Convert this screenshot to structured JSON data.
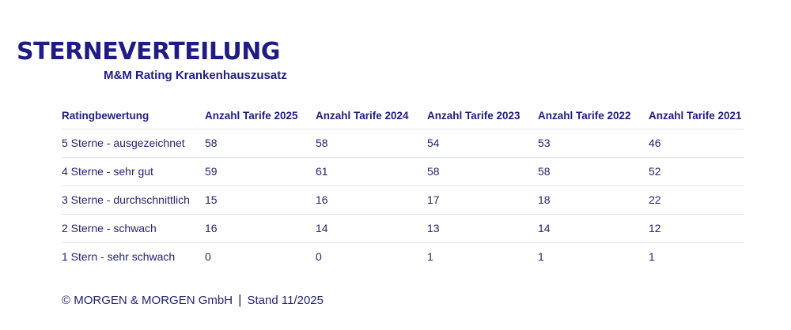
{
  "colors": {
    "brand_blue": "#211c84",
    "text_blue": "#262275",
    "border": "#dfe3ec",
    "background": "#ffffff"
  },
  "header": {
    "title": "STERNEVERTEILUNG",
    "subtitle": "M&M Rating Krankenhauszusatz"
  },
  "footer": {
    "copyright": "© MORGEN & MORGEN GmbH",
    "separator": "|",
    "stand": "Stand 11/2025"
  },
  "chart_data": {
    "type": "table",
    "title": "STERNEVERTEILUNG",
    "subtitle": "M&M Rating Krankenhauszusatz",
    "columns": [
      "Ratingbewertung",
      "Anzahl Tarife 2025",
      "Anzahl Tarife 2024",
      "Anzahl Tarife 2023",
      "Anzahl Tarife 2022",
      "Anzahl Tarife 2021"
    ],
    "rows": [
      {
        "label": "5 Sterne - ausgezeichnet",
        "values": [
          58,
          58,
          54,
          53,
          46
        ]
      },
      {
        "label": "4 Sterne - sehr gut",
        "values": [
          59,
          61,
          58,
          58,
          52
        ]
      },
      {
        "label": "3 Sterne - durchschnittlich",
        "values": [
          15,
          16,
          17,
          18,
          22
        ]
      },
      {
        "label": "2 Sterne - schwach",
        "values": [
          16,
          14,
          13,
          14,
          12
        ]
      },
      {
        "label": "1 Stern - sehr schwach",
        "values": [
          0,
          0,
          1,
          1,
          1
        ]
      }
    ]
  }
}
